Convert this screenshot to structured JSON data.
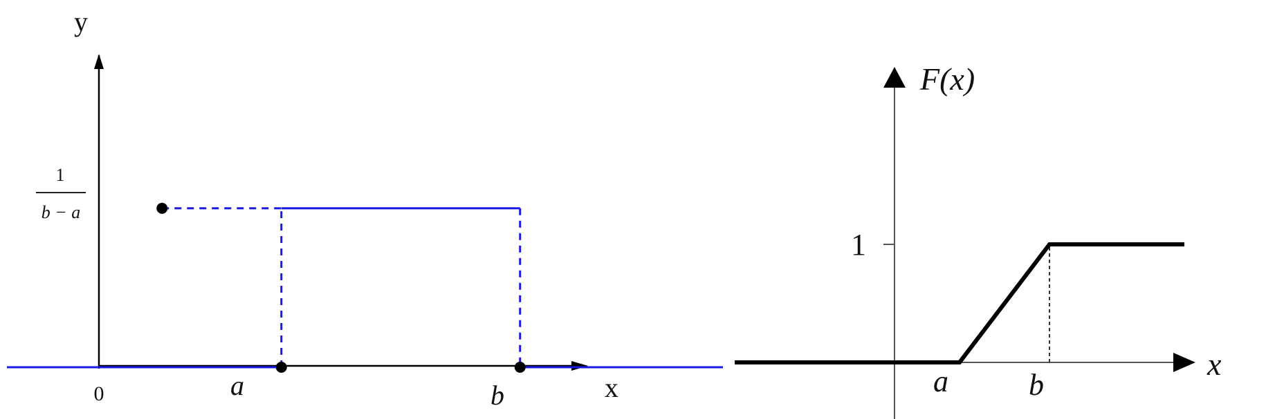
{
  "chart_data": [
    {
      "type": "line",
      "ylabel": "y",
      "xlabel": "x",
      "xlim": [
        -1.3,
        4.7
      ],
      "ylim": [
        0,
        2.05
      ],
      "x_tick_labels": {
        "origin": "0",
        "a": "a",
        "b": "b"
      },
      "y_tick_label": {
        "numerator": "1",
        "denominator": "b − a"
      },
      "params": {
        "a": 1,
        "b": 3,
        "height": 1
      },
      "series": [
        {
          "segments": [
            {
              "x": [
                -1.3,
                1
              ],
              "y": [
                0,
                0
              ],
              "style": "solid"
            },
            {
              "x": [
                1,
                1
              ],
              "y": [
                0,
                1
              ],
              "style": "dashed"
            },
            {
              "x": [
                1,
                3
              ],
              "y": [
                1,
                1
              ],
              "style": "solid"
            },
            {
              "x": [
                3,
                3
              ],
              "y": [
                1,
                0
              ],
              "style": "dashed"
            },
            {
              "x": [
                3,
                4.7
              ],
              "y": [
                0,
                0
              ],
              "style": "solid"
            }
          ]
        }
      ],
      "guides": [
        {
          "x": [
            0,
            1
          ],
          "y": [
            1,
            1
          ],
          "style": "dashed"
        }
      ],
      "points": [
        {
          "x": 0,
          "y": 1
        },
        {
          "x": 1,
          "y": 0
        },
        {
          "x": 3,
          "y": 0
        }
      ],
      "colors": {
        "curve": "#1a1ae6",
        "axis": "#000000"
      }
    },
    {
      "type": "line",
      "ylabel": "F(x)",
      "xlabel": "x",
      "xlim": [
        -2,
        3
      ],
      "ylim": [
        -0.48,
        1.38
      ],
      "x_tick_labels": {
        "a": "a",
        "b": "b"
      },
      "y_tick_label": "1",
      "params": {
        "a": 0.5,
        "b": 1.5
      },
      "series": [
        {
          "x": [
            -2,
            0.5,
            1.5,
            3
          ],
          "y": [
            0,
            0,
            1,
            1
          ]
        }
      ],
      "guides": [
        {
          "x": [
            1.5,
            1.5
          ],
          "y": [
            0,
            1
          ],
          "style": "dashed"
        }
      ],
      "colors": {
        "curve": "#000000",
        "axis": "#555555"
      }
    }
  ]
}
